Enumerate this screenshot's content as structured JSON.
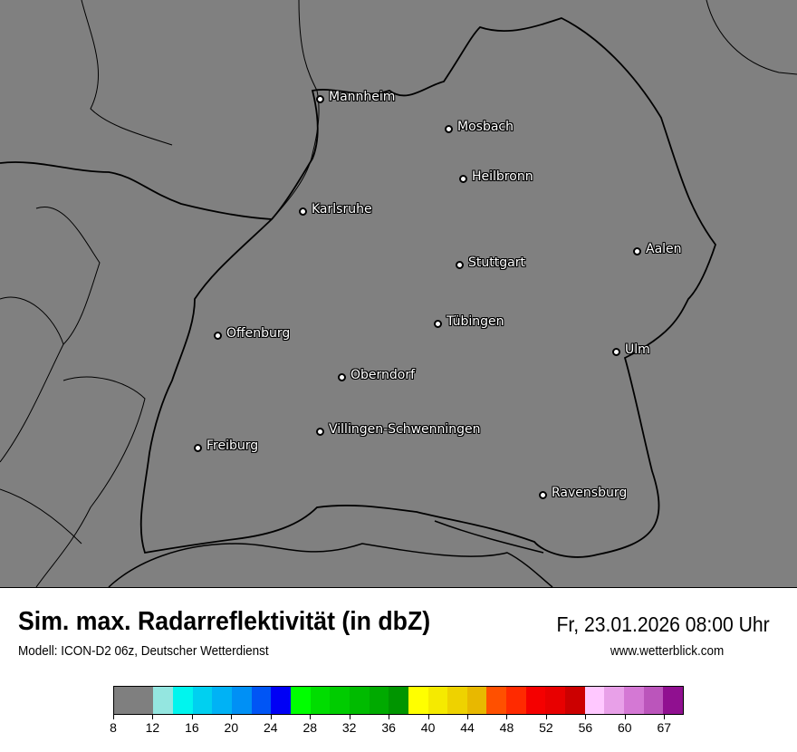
{
  "map": {
    "background_color": "#808080",
    "border_color": "#000000",
    "cities": [
      {
        "name": "Mannheim"
      },
      {
        "name": "Mosbach"
      },
      {
        "name": "Heilbronn"
      },
      {
        "name": "Karlsruhe"
      },
      {
        "name": "Aalen"
      },
      {
        "name": "Stuttgart"
      },
      {
        "name": "Tübingen"
      },
      {
        "name": "Offenburg"
      },
      {
        "name": "Ulm"
      },
      {
        "name": "Oberndorf"
      },
      {
        "name": "Villingen-Schwenningen"
      },
      {
        "name": "Freiburg"
      },
      {
        "name": "Ravensburg"
      }
    ]
  },
  "header": {
    "title": "Sim. max. Radarreflektivität (in dbZ)",
    "datetime": "Fr, 23.01.2026 08:00 Uhr",
    "subtitle": "Modell: ICON-D2 06z, Deutscher Wetterdienst",
    "website": "www.wetterblick.com"
  },
  "legend": {
    "tick_labels": [
      "8",
      "12",
      "16",
      "20",
      "24",
      "28",
      "32",
      "36",
      "40",
      "44",
      "48",
      "52",
      "56",
      "60",
      "67"
    ],
    "colors": [
      "#7f7f7f",
      "#94e6e0",
      "#00f5ee",
      "#00d0f0",
      "#00b2f5",
      "#0090f5",
      "#0055f5",
      "#0000f5",
      "#00ff00",
      "#00dd00",
      "#00cc00",
      "#00bb00",
      "#00aa00",
      "#009500",
      "#ffff00",
      "#f5ea00",
      "#eed200",
      "#e8b800",
      "#ff5000",
      "#ff2a00",
      "#f50000",
      "#e80000",
      "#cc0000",
      "#ffc8ff",
      "#e8a0e8",
      "#d478d4",
      "#bb55bb",
      "#901090"
    ]
  }
}
